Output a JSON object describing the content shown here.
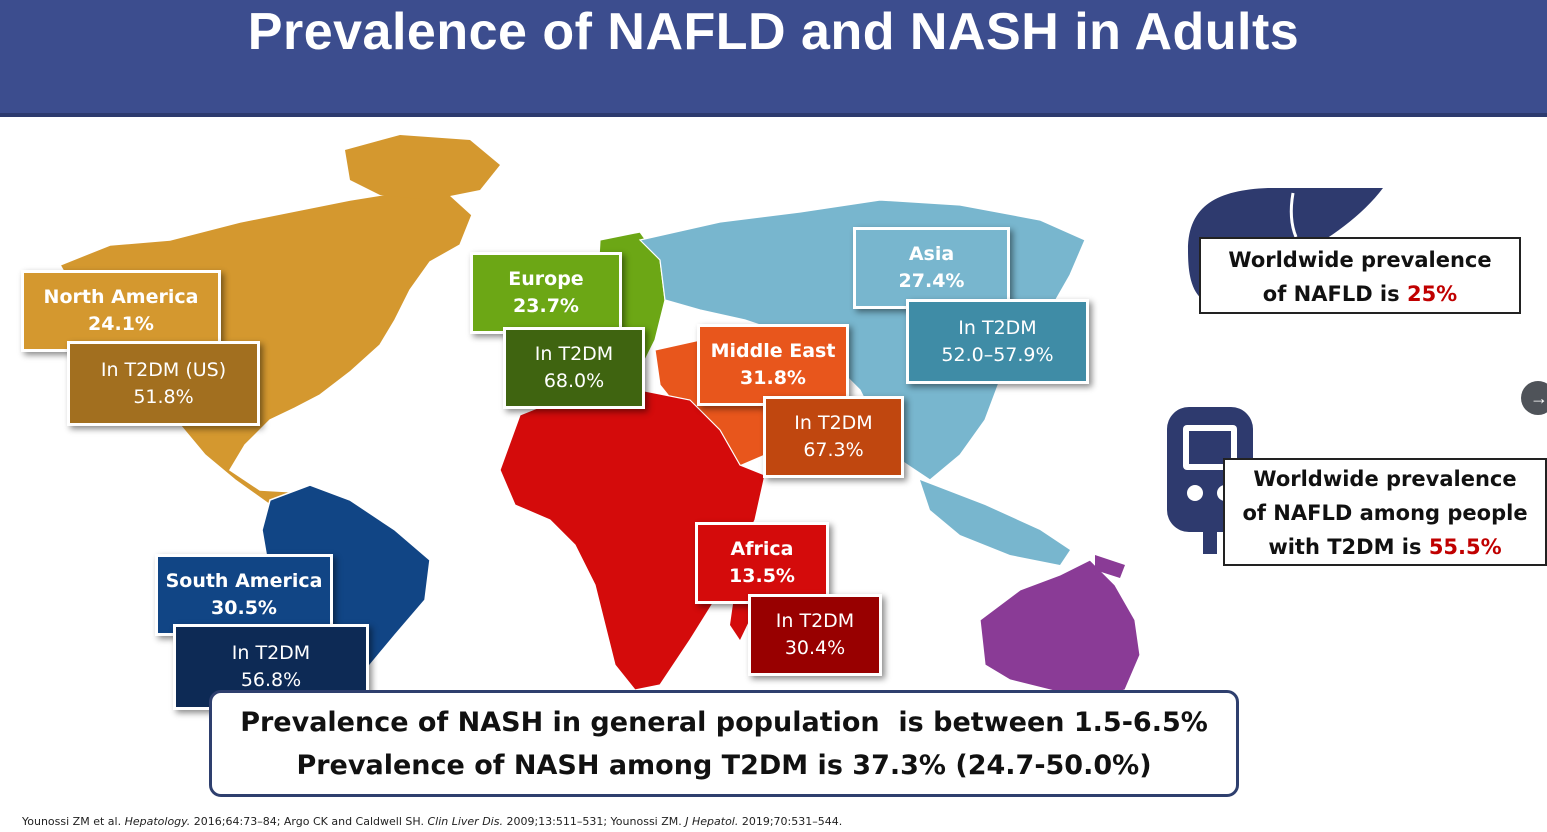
{
  "header": {
    "title": "Prevalence of NAFLD and NASH in Adults"
  },
  "regions": {
    "north_america": {
      "name": "North America",
      "value": "24.1%",
      "t2dm_label": "In T2DM (US)",
      "t2dm_value": "51.8%"
    },
    "europe": {
      "name": "Europe",
      "value": "23.7%",
      "t2dm_label": "In T2DM",
      "t2dm_value": "68.0%"
    },
    "middle_east": {
      "name": "Middle East",
      "value": "31.8%",
      "t2dm_label": "In T2DM",
      "t2dm_value": "67.3%"
    },
    "asia": {
      "name": "Asia",
      "value": "27.4%",
      "t2dm_label": "In T2DM",
      "t2dm_value": "52.0–57.9%"
    },
    "africa": {
      "name": "Africa",
      "value": "13.5%",
      "t2dm_label": "In T2DM",
      "t2dm_value": "30.4%"
    },
    "south_america": {
      "name": "South America",
      "value": "30.5%",
      "t2dm_label": "In T2DM",
      "t2dm_value": "56.8%"
    }
  },
  "worldwide_nafld": {
    "line1": "Worldwide prevalence",
    "line2_prefix": "of NAFLD is ",
    "value": "25%"
  },
  "worldwide_t2dm": {
    "line1": "Worldwide prevalence",
    "line2": "of NAFLD among people",
    "line3_prefix": "with T2DM is ",
    "value": "55.5%"
  },
  "nash": {
    "line1": "Prevalence of NASH in general population  is between 1.5-6.5%",
    "line2": "Prevalence of NASH among T2DM is 37.3% (24.7-50.0%)"
  },
  "references": {
    "r1": "Younossi ZM et al. ",
    "r1_journal": "Hepatology.",
    "r1_rest": " 2016;64:73–84; Argo CK and Caldwell SH. ",
    "r2_journal": "Clin Liver Dis.",
    "r2_rest": " 2009;13:511–531; Younossi ZM. ",
    "r3_journal": "J Hepatol.",
    "r3_rest": " 2019;70:531–544."
  },
  "icons": {
    "next": "arrow-right-icon",
    "liver": "liver-icon",
    "glucometer": "glucometer-icon"
  },
  "colors": {
    "header": "#3c4d8e",
    "north_america": "#d4982f",
    "north_america_dark": "#a26f1f",
    "europe": "#6ca715",
    "europe_dark": "#3f6410",
    "middle_east": "#e8561c",
    "middle_east_dark": "#c0470f",
    "asia": "#78b6ce",
    "asia_dark": "#3f8ca6",
    "africa": "#d40b0b",
    "africa_dark": "#980000",
    "south_america": "#114585",
    "south_america_dark": "#0d2a55",
    "oceania": "#8a3b96",
    "highlight": "#c00000"
  }
}
